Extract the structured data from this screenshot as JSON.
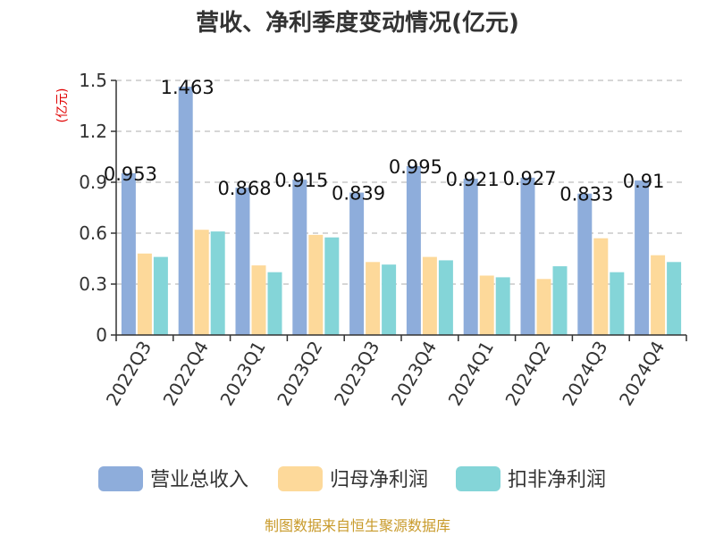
{
  "chart_data": {
    "type": "bar",
    "title": "营收、净利季度变动情况(亿元)",
    "ylabel": "(亿元)",
    "xlabel": "",
    "ylim": [
      0,
      1.5
    ],
    "yticks": [
      "0",
      "0.3",
      "0.6",
      "0.9",
      "1.2",
      "1.5"
    ],
    "ytick_values": [
      0,
      0.3,
      0.6,
      0.9,
      1.2,
      1.5
    ],
    "grid": true,
    "legend_position": "bottom",
    "categories": [
      "2022Q3",
      "2022Q4",
      "2023Q1",
      "2023Q2",
      "2023Q3",
      "2023Q4",
      "2024Q1",
      "2024Q2",
      "2024Q3",
      "2024Q4"
    ],
    "series": [
      {
        "name": "营业总收入",
        "color": "#8eaddb",
        "values": [
          0.953,
          1.463,
          0.868,
          0.915,
          0.839,
          0.995,
          0.921,
          0.927,
          0.833,
          0.91
        ]
      },
      {
        "name": "归母净利润",
        "color": "#fdd99a",
        "values": [
          0.48,
          0.62,
          0.41,
          0.59,
          0.43,
          0.46,
          0.35,
          0.33,
          0.57,
          0.47
        ]
      },
      {
        "name": "扣非净利润",
        "color": "#84d5d8",
        "values": [
          0.46,
          0.61,
          0.37,
          0.575,
          0.415,
          0.44,
          0.34,
          0.405,
          0.37,
          0.43
        ]
      }
    ],
    "data_labels": [
      "0.953",
      "1.463",
      "0.868",
      "0.915",
      "0.839",
      "0.995",
      "0.921",
      "0.927",
      "0.833",
      "0.91"
    ]
  },
  "source": "制图数据来自恒生聚源数据库"
}
